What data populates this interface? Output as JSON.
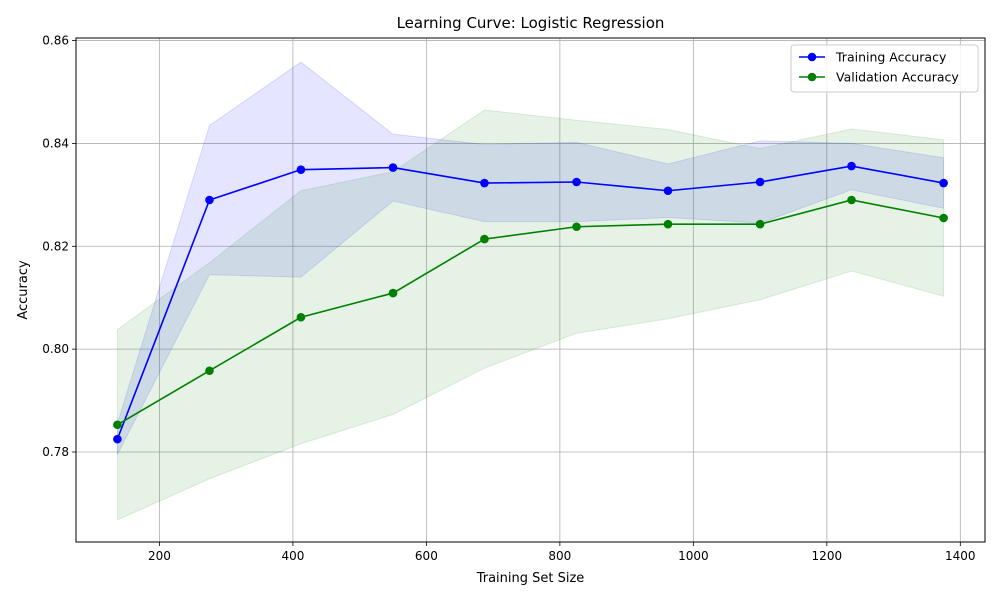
{
  "chart_data": {
    "type": "line",
    "title": "Learning Curve: Logistic Regression",
    "xlabel": "Training Set Size",
    "ylabel": "Accuracy",
    "xlim": [
      75,
      1437
    ],
    "ylim": [
      0.7625,
      0.8605
    ],
    "xticks": [
      200,
      400,
      600,
      800,
      1000,
      1200,
      1400
    ],
    "yticks": [
      0.78,
      0.8,
      0.82,
      0.84,
      0.86
    ],
    "ytick_labels": [
      "0.78",
      "0.80",
      "0.82",
      "0.84",
      "0.86"
    ],
    "grid": true,
    "legend_position": "top-right",
    "x": [
      137,
      275,
      412,
      550,
      687,
      825,
      962,
      1100,
      1237,
      1375
    ],
    "series": [
      {
        "name": "Training Accuracy",
        "color": "#0000ff",
        "values": [
          0.7825,
          0.829,
          0.8349,
          0.8353,
          0.8323,
          0.8325,
          0.8308,
          0.8325,
          0.8356,
          0.8323
        ],
        "band_upper": [
          0.7855,
          0.8435,
          0.8558,
          0.8418,
          0.8398,
          0.8402,
          0.836,
          0.8405,
          0.84,
          0.8372
        ],
        "band_lower": [
          0.7795,
          0.8145,
          0.814,
          0.8288,
          0.8248,
          0.8248,
          0.8256,
          0.8245,
          0.831,
          0.8274
        ]
      },
      {
        "name": "Validation Accuracy",
        "color": "#008000",
        "values": [
          0.7853,
          0.7958,
          0.8062,
          0.8109,
          0.8214,
          0.8238,
          0.8243,
          0.8243,
          0.829,
          0.8255
        ],
        "band_upper": [
          0.8038,
          0.8168,
          0.8308,
          0.8345,
          0.8465,
          0.8445,
          0.8427,
          0.839,
          0.8428,
          0.8407
        ],
        "band_lower": [
          0.7668,
          0.7748,
          0.7816,
          0.7873,
          0.7963,
          0.8031,
          0.8059,
          0.8096,
          0.8152,
          0.8103
        ]
      }
    ]
  }
}
